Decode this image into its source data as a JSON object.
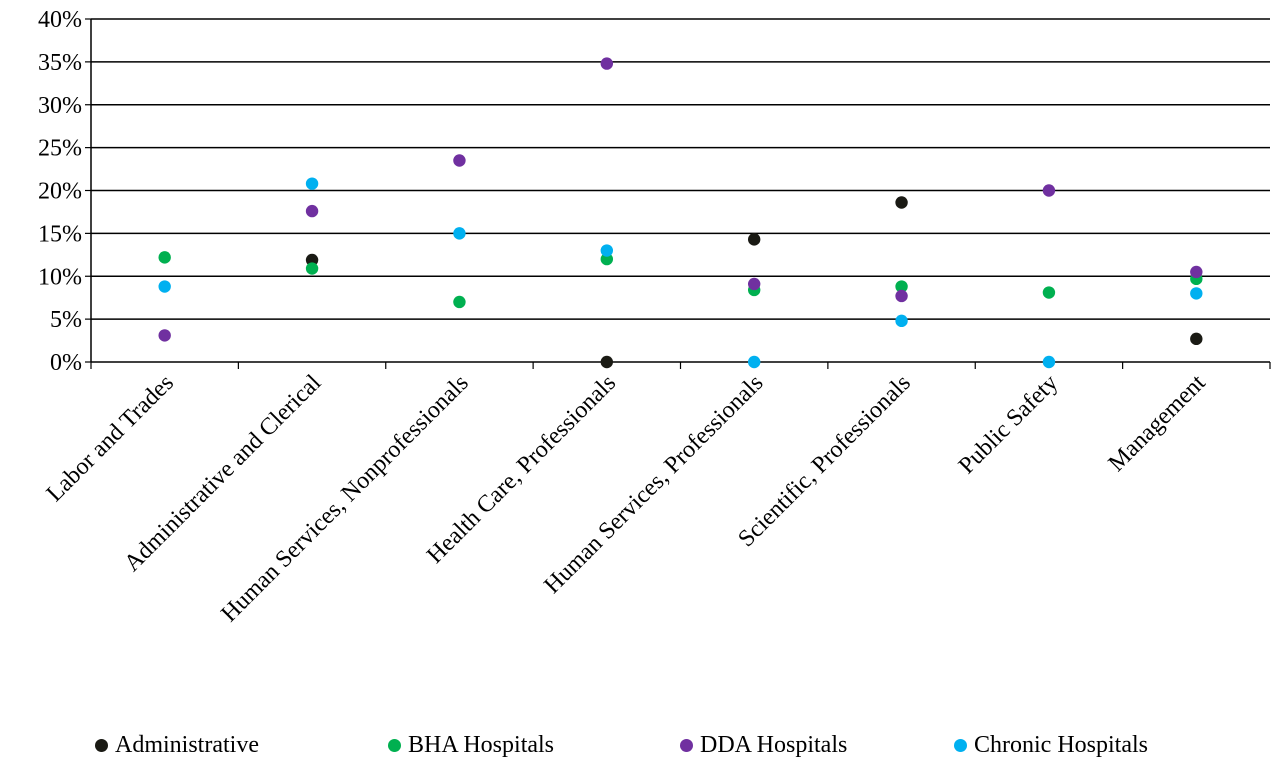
{
  "chart_data": {
    "type": "scatter",
    "categories": [
      "Labor and Trades",
      "Administrative and Clerical",
      "Human Services, Nonprofessionals",
      "Health Care, Professionals",
      "Human Services, Professionals",
      "Scientific, Professionals",
      "Public Safety",
      "Management"
    ],
    "ylim": [
      0,
      40
    ],
    "y_ticks": [
      "0%",
      "5%",
      "10%",
      "15%",
      "20%",
      "25%",
      "30%",
      "35%",
      "40%"
    ],
    "grid": true,
    "legend_position": "bottom",
    "series": [
      {
        "name": "Administrative",
        "color": "#1a1a14",
        "values": [
          null,
          11.9,
          null,
          0.0,
          14.3,
          18.6,
          null,
          2.7
        ]
      },
      {
        "name": "BHA Hospitals",
        "color": "#00b050",
        "values": [
          12.2,
          10.9,
          7.0,
          12.0,
          8.4,
          8.8,
          8.1,
          9.7
        ]
      },
      {
        "name": "DDA Hospitals",
        "color": "#7030a0",
        "values": [
          3.1,
          17.6,
          23.5,
          34.8,
          9.1,
          7.7,
          20.0,
          10.5
        ]
      },
      {
        "name": "Chronic Hospitals",
        "color": "#00b0f0",
        "values": [
          8.8,
          20.8,
          15.0,
          13.0,
          0.0,
          4.8,
          0.0,
          8.0
        ]
      }
    ]
  }
}
